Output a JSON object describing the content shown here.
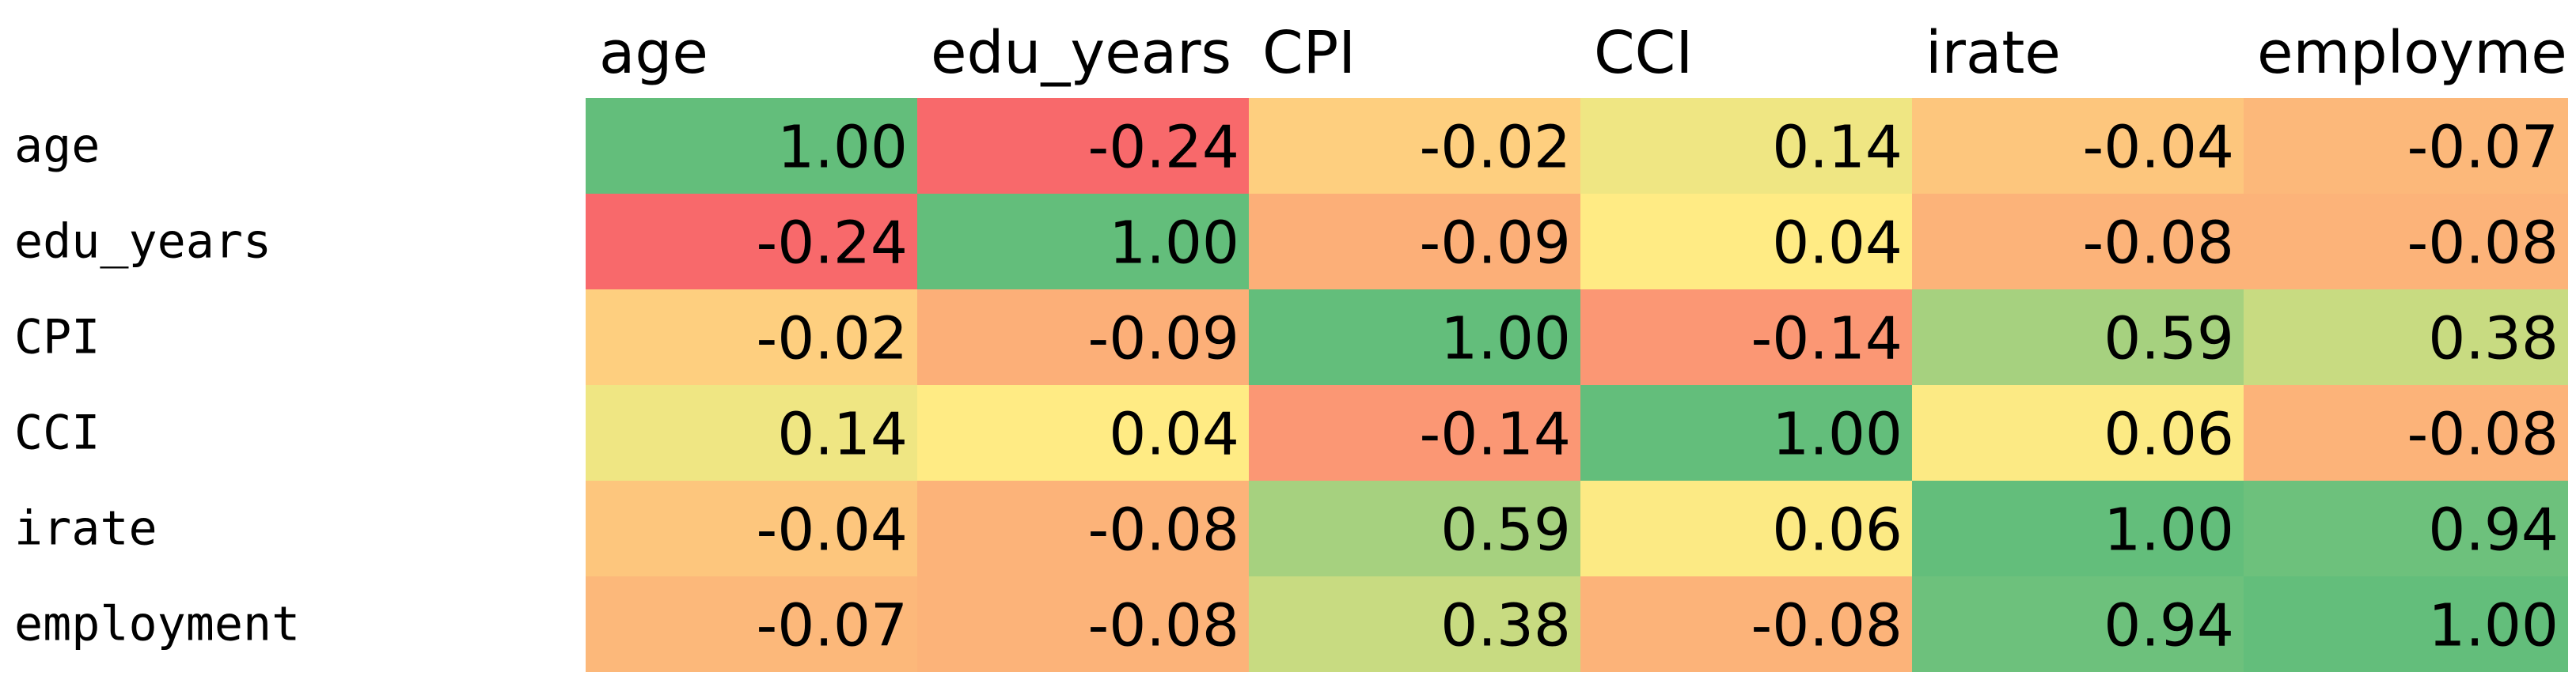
{
  "chart_data": {
    "type": "heatmap",
    "columns": [
      "age",
      "edu_years",
      "CPI",
      "CCI",
      "irate",
      "employme"
    ],
    "rows": [
      "age",
      "edu_years",
      "CPI",
      "CCI",
      "irate",
      "employment"
    ],
    "values": [
      [
        1.0,
        -0.24,
        -0.02,
        0.14,
        -0.04,
        -0.07
      ],
      [
        -0.24,
        1.0,
        -0.09,
        0.04,
        -0.08,
        -0.08
      ],
      [
        -0.02,
        -0.09,
        1.0,
        -0.14,
        0.59,
        0.38
      ],
      [
        0.14,
        0.04,
        -0.14,
        1.0,
        0.06,
        -0.08
      ],
      [
        -0.04,
        -0.08,
        0.59,
        0.06,
        1.0,
        0.94
      ],
      [
        -0.07,
        -0.08,
        0.38,
        -0.08,
        0.94,
        1.0
      ]
    ],
    "value_labels": [
      [
        "1.00",
        "-0.24",
        "-0.02",
        "0.14",
        "-0.04",
        "-0.07"
      ],
      [
        "-0.24",
        "1.00",
        "-0.09",
        "0.04",
        "-0.08",
        "-0.08"
      ],
      [
        "-0.02",
        "-0.09",
        "1.00",
        "-0.14",
        "0.59",
        "0.38"
      ],
      [
        "0.14",
        "0.04",
        "-0.14",
        "1.00",
        "0.06",
        "-0.08"
      ],
      [
        "-0.04",
        "-0.08",
        "0.59",
        "0.06",
        "1.00",
        "0.94"
      ],
      [
        "-0.07",
        "-0.08",
        "0.38",
        "-0.08",
        "0.94",
        "1.00"
      ]
    ],
    "color_scale": {
      "min": -0.24,
      "mid": 0.04,
      "max": 1.0,
      "low_color": "#F8696B",
      "mid_color": "#FFEB84",
      "high_color": "#63BE7B"
    }
  }
}
